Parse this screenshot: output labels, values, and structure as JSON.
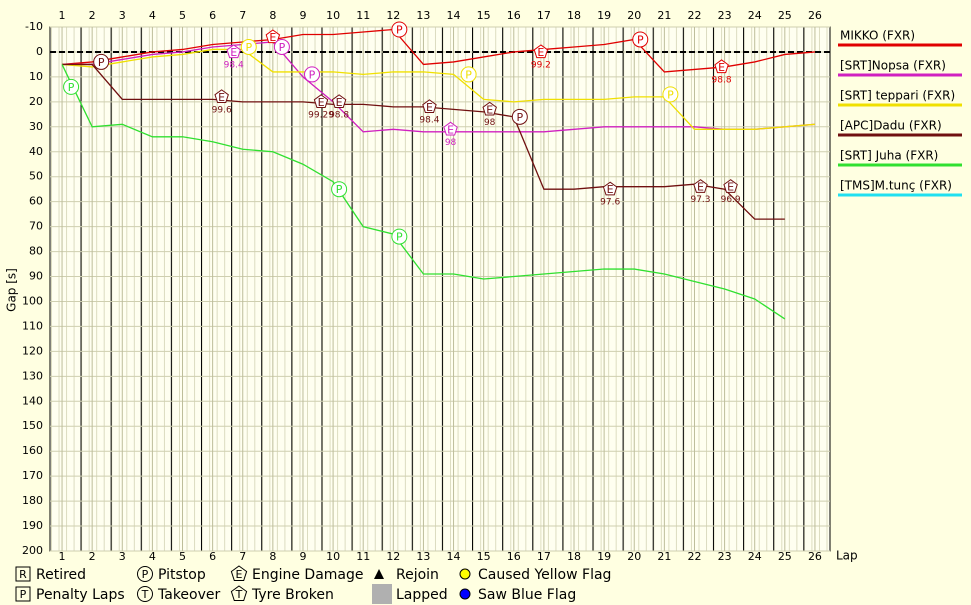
{
  "chart_data": {
    "type": "line",
    "xlabel": "Lap",
    "ylabel": "Gap [s]",
    "x": [
      1,
      2,
      3,
      4,
      5,
      6,
      7,
      8,
      9,
      10,
      11,
      12,
      13,
      14,
      15,
      16,
      17,
      18,
      19,
      20,
      21,
      22,
      23,
      24,
      25,
      26
    ],
    "xlim": [
      0.6,
      26.5
    ],
    "xticks": [
      1,
      2,
      3,
      4,
      5,
      6,
      7,
      8,
      9,
      10,
      11,
      12,
      13,
      14,
      15,
      16,
      17,
      18,
      19,
      20,
      21,
      22,
      23,
      24,
      25,
      26
    ],
    "ylim": [
      -10,
      200
    ],
    "yticks": [
      -10,
      0,
      10,
      20,
      30,
      40,
      50,
      60,
      70,
      80,
      90,
      100,
      110,
      120,
      130,
      140,
      150,
      160,
      170,
      180,
      190,
      200
    ],
    "y_inverted": true,
    "grid": true,
    "series": [
      {
        "name": "MIKKO (FXR)",
        "color": "#e00000",
        "values": [
          5,
          4,
          2,
          0,
          -1,
          -3,
          -4,
          -5,
          -7,
          -7,
          -8,
          -9,
          5,
          4,
          2,
          0,
          -1,
          -2,
          -3,
          -5,
          8,
          7,
          6,
          4,
          1,
          0
        ]
      },
      {
        "name": "[SRT]Nopsa (FXR)",
        "color": "#d020c0",
        "values": [
          5,
          5,
          3,
          1,
          0,
          -2,
          -3,
          -4,
          10,
          20,
          32,
          31,
          32,
          32,
          32,
          32,
          32,
          31,
          30,
          30,
          30,
          30,
          31,
          31,
          30,
          29
        ]
      },
      {
        "name": "[SRT] teppari (FXR)",
        "color": "#f0e000",
        "values": [
          5,
          6,
          4,
          2,
          1,
          -1,
          -1,
          8,
          8,
          8,
          9,
          8,
          8,
          9,
          19,
          20,
          19,
          19,
          19,
          18,
          18,
          31,
          31,
          31,
          30,
          29
        ]
      },
      {
        "name": "[APC]Dadu (FXR)",
        "color": "#701010",
        "values": [
          5,
          5,
          19,
          19,
          19,
          19,
          20,
          20,
          20,
          21,
          21,
          22,
          22,
          23,
          24,
          26,
          55,
          55,
          54,
          54,
          54,
          53,
          55,
          67,
          67,
          null
        ]
      },
      {
        "name": "[SRT] Juha (FXR)",
        "color": "#30e030",
        "values": [
          5,
          30,
          29,
          34,
          34,
          36,
          39,
          40,
          45,
          52,
          70,
          73,
          89,
          89,
          91,
          90,
          89,
          88,
          87,
          87,
          89,
          92,
          95,
          99,
          107,
          null
        ]
      },
      {
        "name": "[TMS]M.tunç (FXR)",
        "color": "#20e0f0",
        "values": [
          null,
          null,
          null,
          null,
          null,
          null,
          null,
          null,
          null,
          null,
          null,
          null,
          null,
          null,
          null,
          null,
          null,
          null,
          null,
          null,
          null,
          null,
          null,
          null,
          null,
          null
        ]
      }
    ],
    "events": [
      {
        "x": 12.2,
        "y": -9,
        "symbol": "P",
        "color": "#e00000"
      },
      {
        "x": 16.9,
        "y": 0,
        "symbol": "E",
        "label": "99.2",
        "color": "#e00000"
      },
      {
        "x": 20.2,
        "y": -5,
        "symbol": "P",
        "color": "#e00000"
      },
      {
        "x": 22.9,
        "y": 6,
        "symbol": "E",
        "label": "98.8",
        "color": "#e00000"
      },
      {
        "x": 8.0,
        "y": -6,
        "symbol": "E",
        "color": "#e00000"
      },
      {
        "x": 6.7,
        "y": 0,
        "symbol": "E",
        "label": "98.4",
        "color": "#d020c0"
      },
      {
        "x": 8.3,
        "y": -2,
        "symbol": "P",
        "color": "#d020c0"
      },
      {
        "x": 9.3,
        "y": 9,
        "symbol": "P",
        "color": "#d020c0"
      },
      {
        "x": 13.9,
        "y": 31,
        "symbol": "E",
        "label": "98",
        "color": "#d020c0"
      },
      {
        "x": 7.2,
        "y": -2,
        "symbol": "P",
        "color": "#f0e000"
      },
      {
        "x": 14.5,
        "y": 9,
        "symbol": "P",
        "color": "#f0e000"
      },
      {
        "x": 21.2,
        "y": 17,
        "symbol": "P",
        "color": "#f0e000"
      },
      {
        "x": 2.3,
        "y": 4,
        "symbol": "P",
        "color": "#701010"
      },
      {
        "x": 6.3,
        "y": 18,
        "symbol": "E",
        "label": "99.6",
        "color": "#701010"
      },
      {
        "x": 9.6,
        "y": 20,
        "symbol": "E",
        "label": "99.29",
        "color": "#701010"
      },
      {
        "x": 10.2,
        "y": 20,
        "symbol": "E",
        "label": "98.8",
        "color": "#701010"
      },
      {
        "x": 13.2,
        "y": 22,
        "symbol": "E",
        "label": "98.4",
        "color": "#701010"
      },
      {
        "x": 15.2,
        "y": 23,
        "symbol": "E",
        "label": "98",
        "color": "#701010"
      },
      {
        "x": 16.2,
        "y": 26,
        "symbol": "P",
        "color": "#701010"
      },
      {
        "x": 19.2,
        "y": 55,
        "symbol": "E",
        "label": "97.6",
        "color": "#701010"
      },
      {
        "x": 22.2,
        "y": 54,
        "symbol": "E",
        "label": "97.3",
        "color": "#701010"
      },
      {
        "x": 23.2,
        "y": 54,
        "symbol": "E",
        "label": "96.9",
        "color": "#701010"
      },
      {
        "x": 1.3,
        "y": 14,
        "symbol": "P",
        "color": "#30e030"
      },
      {
        "x": 10.2,
        "y": 55,
        "symbol": "P",
        "color": "#30e030"
      },
      {
        "x": 12.2,
        "y": 74,
        "symbol": "P",
        "color": "#30e030"
      }
    ],
    "key": [
      {
        "symbol": "R",
        "label": "Retired"
      },
      {
        "symbol": "P",
        "label": "Penalty Laps"
      },
      {
        "symbol": "P",
        "label": "Pitstop"
      },
      {
        "symbol": "T",
        "label": "Takeover"
      },
      {
        "symbol": "E",
        "label": "Engine Damage"
      },
      {
        "symbol": "T",
        "label": "Tyre Broken"
      },
      {
        "label": "Rejoin"
      },
      {
        "label": "Lapped"
      },
      {
        "label": "Caused Yellow Flag"
      },
      {
        "label": "Saw Blue Flag"
      }
    ]
  }
}
